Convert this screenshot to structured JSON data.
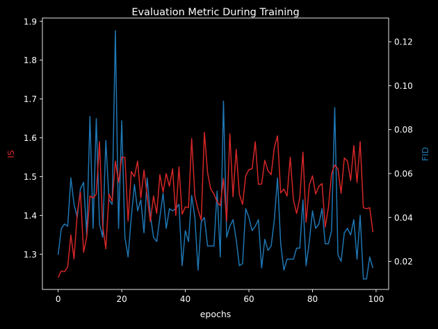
{
  "chart_data": {
    "type": "line",
    "title": "Evaluation Metric During Training",
    "xlabel": "epochs",
    "ylabel_left": "IS",
    "ylabel_right": "FID",
    "xlim": [
      -4.95,
      103.95
    ],
    "ylim_left": [
      1.2093,
      1.9085
    ],
    "ylim_right": [
      0.00721,
      0.13079
    ],
    "x_ticks": [
      "0",
      "20",
      "40",
      "60",
      "80",
      "100"
    ],
    "left_ticks": [
      "1.3",
      "1.4",
      "1.5",
      "1.6",
      "1.7",
      "1.8",
      "1.9"
    ],
    "right_ticks": [
      "0.02",
      "0.04",
      "0.06",
      "0.08",
      "0.10",
      "0.12"
    ],
    "grid": false,
    "colors": {
      "IS": "#d62728",
      "FID": "#1f77b4"
    },
    "series": [
      {
        "axis": "left",
        "values": [
          1.24,
          1.257,
          1.255,
          1.267,
          1.35,
          1.288,
          1.405,
          1.46,
          1.305,
          1.345,
          1.45,
          1.445,
          1.455,
          1.59,
          1.375,
          1.314,
          1.455,
          1.436,
          1.54,
          1.485,
          1.55,
          1.55,
          1.385,
          1.513,
          1.5,
          1.54,
          1.445,
          1.517,
          1.45,
          1.384,
          1.45,
          1.405,
          1.505,
          1.46,
          1.508,
          1.475,
          1.52,
          1.4,
          1.525,
          1.403,
          1.422,
          1.42,
          1.598,
          1.45,
          1.415,
          1.388,
          1.614,
          1.51,
          1.468,
          1.455,
          1.435,
          1.425,
          1.495,
          1.385,
          1.61,
          1.448,
          1.57,
          1.455,
          1.428,
          1.502,
          1.518,
          1.52,
          1.59,
          1.48,
          1.481,
          1.542,
          1.515,
          1.505,
          1.575,
          1.605,
          1.458,
          1.468,
          1.45,
          1.55,
          1.44,
          1.405,
          1.445,
          1.563,
          1.382,
          1.478,
          1.502,
          1.455,
          1.475,
          1.482,
          1.37,
          1.42,
          1.508,
          1.53,
          1.52,
          1.457,
          1.548,
          1.54,
          1.49,
          1.58,
          1.485,
          1.59,
          1.42,
          1.417,
          1.42,
          1.357
        ]
      },
      {
        "axis": "right",
        "values": [
          0.023,
          0.035,
          0.037,
          0.036,
          0.058,
          0.046,
          0.04,
          0.053,
          0.056,
          0.032,
          0.086,
          0.035,
          0.085,
          0.037,
          0.031,
          0.075,
          0.048,
          0.046,
          0.125,
          0.035,
          0.084,
          0.031,
          0.022,
          0.04,
          0.055,
          0.043,
          0.048,
          0.033,
          0.058,
          0.041,
          0.031,
          0.029,
          0.04,
          0.051,
          0.035,
          0.044,
          0.043,
          0.044,
          0.046,
          0.018,
          0.034,
          0.029,
          0.05,
          0.04,
          0.016,
          0.038,
          0.04,
          0.027,
          0.027,
          0.027,
          0.052,
          0.022,
          0.093,
          0.031,
          0.036,
          0.039,
          0.03,
          0.018,
          0.019,
          0.044,
          0.04,
          0.034,
          0.036,
          0.039,
          0.017,
          0.03,
          0.025,
          0.027,
          0.039,
          0.058,
          0.028,
          0.016,
          0.021,
          0.021,
          0.021,
          0.026,
          0.026,
          0.048,
          0.018,
          0.029,
          0.043,
          0.035,
          0.037,
          0.044,
          0.028,
          0.028,
          0.034,
          0.09,
          0.023,
          0.02,
          0.033,
          0.035,
          0.032,
          0.039,
          0.021,
          0.041,
          0.012,
          0.012,
          0.022,
          0.017
        ]
      }
    ]
  }
}
